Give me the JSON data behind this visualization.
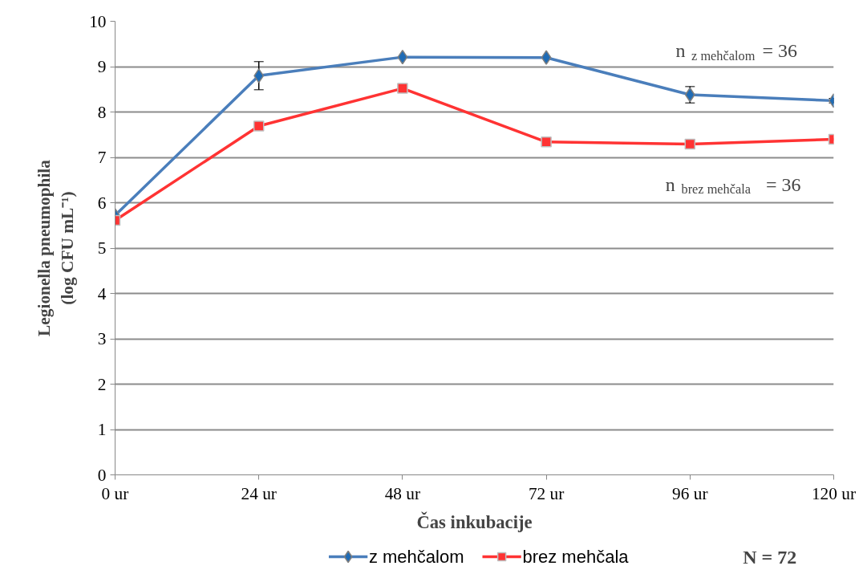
{
  "chart_data": {
    "type": "line",
    "xlabel": "Čas inkubacije",
    "ylabel": "Legionella pneumophila\n(log CFU mL⁻¹)",
    "categories": [
      "0 ur",
      "24 ur",
      "48 ur",
      "72 ur",
      "96 ur",
      "120 ur"
    ],
    "series": [
      {
        "name": "z mehčalom",
        "color": "#4a7ebb",
        "marker": "diamond",
        "values": [
          5.72,
          8.8,
          9.21,
          9.2,
          8.38,
          8.25
        ],
        "errors": [
          null,
          0.31,
          null,
          null,
          0.18,
          0.05
        ]
      },
      {
        "name": "brez mehčala",
        "color": "#ff3333",
        "marker": "square",
        "values": [
          5.61,
          7.69,
          8.52,
          7.34,
          7.29,
          7.4
        ]
      }
    ],
    "ylim": [
      0,
      10
    ],
    "yticks": [
      0,
      1,
      2,
      3,
      4,
      5,
      6,
      7,
      8,
      9,
      10
    ],
    "grid": "y",
    "legend": "bottom",
    "annotations": [
      "n $_{z mehčalom}$ = 36",
      "n $_{brez mehčala}$ = 36",
      "N = 72"
    ]
  }
}
